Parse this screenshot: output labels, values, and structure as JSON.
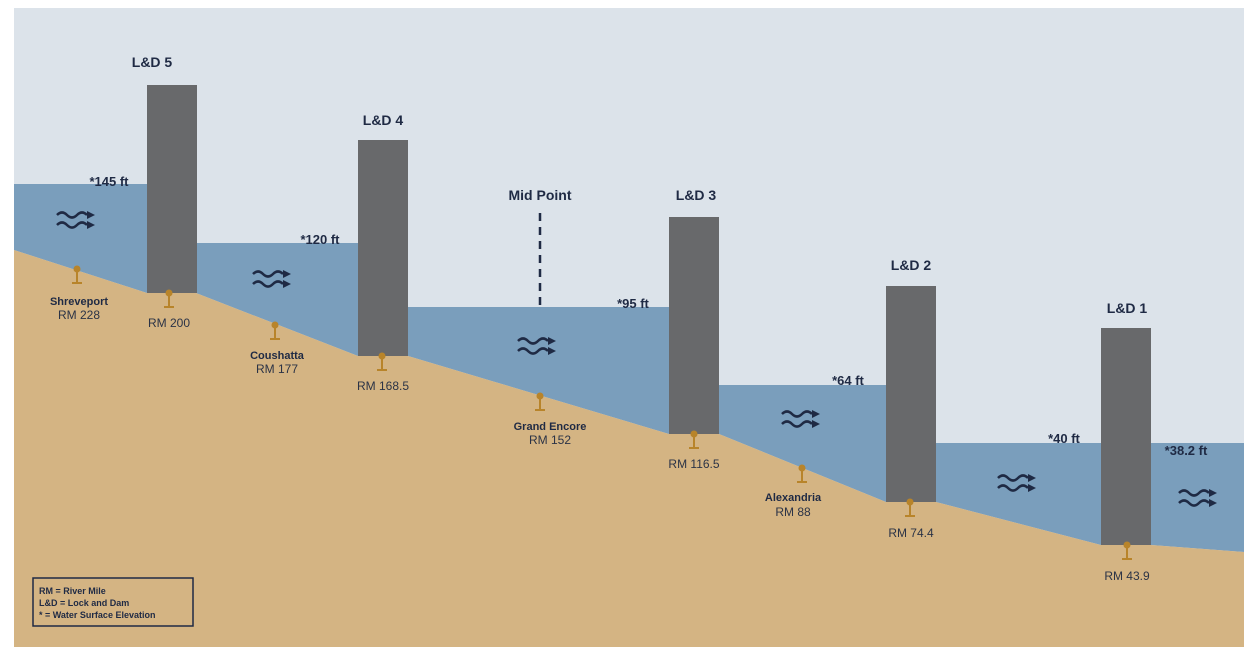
{
  "colors": {
    "sky": "#dce3ea",
    "water": "#7a9ebc",
    "ground": "#d4b483",
    "dam": "#68696b",
    "marker": "#b8842a",
    "text": "#1f2a44"
  },
  "dams": [
    {
      "label": "L&D 5",
      "rm": "RM 200"
    },
    {
      "label": "L&D 4",
      "rm": "RM 168.5"
    },
    {
      "label": "L&D 3",
      "rm": "RM 116.5"
    },
    {
      "label": "L&D 2",
      "rm": "RM 74.4"
    },
    {
      "label": "L&D 1",
      "rm": "RM 43.9"
    }
  ],
  "elevations": [
    "*145 ft",
    "*120 ft",
    "*95 ft",
    "*64 ft",
    "*40 ft",
    "*38.2 ft"
  ],
  "places": [
    {
      "name": "Shreveport",
      "rm": "RM 228"
    },
    {
      "name": "Coushatta",
      "rm": "RM 177"
    },
    {
      "name": "Grand Encore",
      "rm": "RM 152"
    },
    {
      "name": "Alexandria",
      "rm": "RM 88"
    }
  ],
  "midpoint": "Mid Point",
  "legend": [
    "RM = River Mile",
    "L&D = Lock and Dam",
    "* = Water Surface Elevation"
  ],
  "icons": {
    "flow": "flow-waves-icon",
    "marker": "river-mile-marker-icon"
  }
}
